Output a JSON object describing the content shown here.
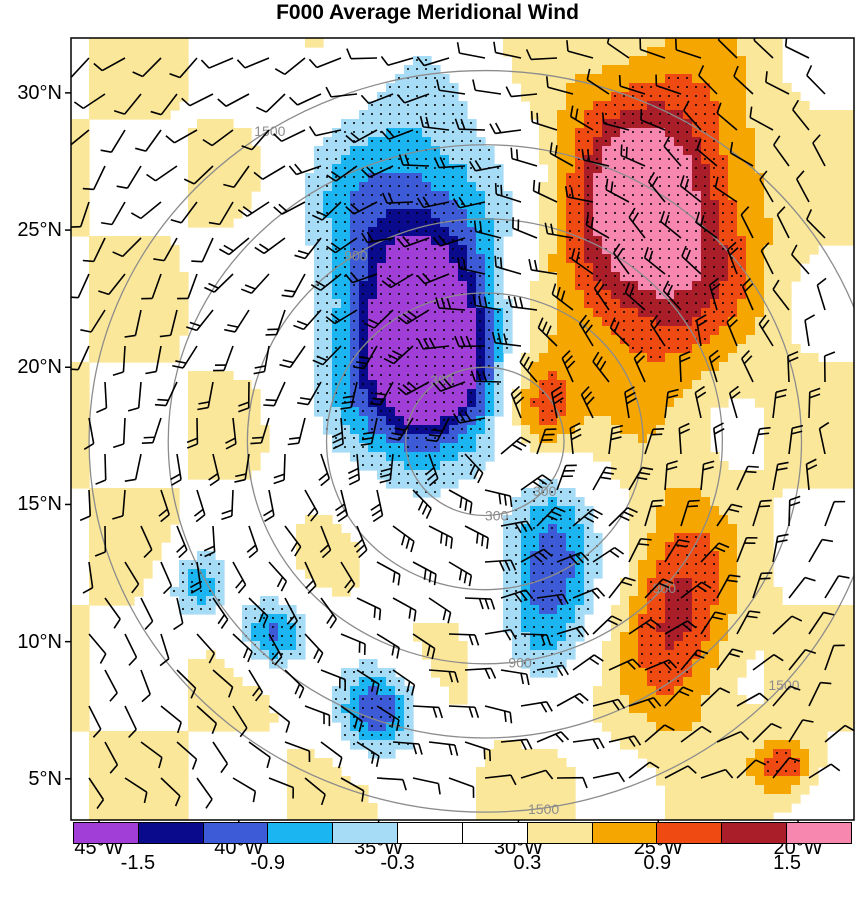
{
  "title": "F000 Average Meridional Wind",
  "map": {
    "lon_range": [
      -46,
      -18
    ],
    "lat_range": [
      3.5,
      32
    ],
    "lat_labels": [
      "30°N",
      "25°N",
      "20°N",
      "15°N",
      "10°N",
      "5°N"
    ],
    "lat_values": [
      30,
      25,
      20,
      15,
      10,
      5
    ],
    "lon_labels": [
      "45°W",
      "40°W",
      "35°W",
      "30°W",
      "25°W",
      "20°W"
    ],
    "lon_values": [
      -45,
      -40,
      -35,
      -30,
      -25,
      -20
    ],
    "range_rings": {
      "center_lon": -31.2,
      "center_lat": 17.3,
      "color": "#8c8c8c",
      "rings": [
        {
          "radius_km": 300,
          "label": "300"
        },
        {
          "radius_km": 600,
          "label": ""
        },
        {
          "radius_km": 900,
          "label": "900"
        },
        {
          "radius_km": 1200,
          "label": ""
        },
        {
          "radius_km": 1500,
          "label": "1500"
        }
      ]
    },
    "wind_field": "stippling marks significance; barbs show mean wind",
    "features": [
      {
        "sign": "negative",
        "level": -1.8,
        "center": [
          -33.8,
          23.5
        ],
        "spread": [
          3.6,
          6.5
        ]
      },
      {
        "sign": "negative",
        "level": -1.7,
        "center": [
          -33.2,
          19.8
        ],
        "spread": [
          2.2,
          3.0
        ]
      },
      {
        "sign": "negative",
        "level": -1.5,
        "center": [
          -28.9,
          12.8
        ],
        "spread": [
          1.8,
          3.8
        ]
      },
      {
        "sign": "negative",
        "level": -1.0,
        "center": [
          -41.5,
          12.0
        ],
        "spread": [
          1.2,
          1.5
        ]
      },
      {
        "sign": "negative",
        "level": -1.3,
        "center": [
          -38.8,
          10.3
        ],
        "spread": [
          1.3,
          1.4
        ]
      },
      {
        "sign": "negative",
        "level": -1.4,
        "center": [
          -35.0,
          7.5
        ],
        "spread": [
          1.6,
          1.8
        ]
      },
      {
        "sign": "positive",
        "level": 1.8,
        "center": [
          -25.3,
          25.5
        ],
        "spread": [
          3.2,
          5.0
        ]
      },
      {
        "sign": "positive",
        "level": 1.2,
        "center": [
          -29.2,
          18.4
        ],
        "spread": [
          1.4,
          2.2
        ]
      },
      {
        "sign": "positive",
        "level": 1.0,
        "center": [
          -24.3,
          11.0
        ],
        "spread": [
          1.8,
          4.0
        ]
      },
      {
        "sign": "positive",
        "level": 0.9,
        "center": [
          -20.5,
          5.5
        ],
        "spread": [
          1.0,
          1.0
        ]
      }
    ]
  },
  "colorbar": {
    "colors": [
      "#a23ed8",
      "#0a0a8c",
      "#3d5bd6",
      "#1bb6f2",
      "#a7dcf7",
      "#ffffff",
      "#ffffff",
      "#fbe79a",
      "#f6a600",
      "#ef4a12",
      "#aa1e2a",
      "#f887b0"
    ],
    "labels": [
      "-1.5",
      "-0.9",
      "-0.3",
      "0.3",
      "0.9",
      "1.5"
    ]
  }
}
